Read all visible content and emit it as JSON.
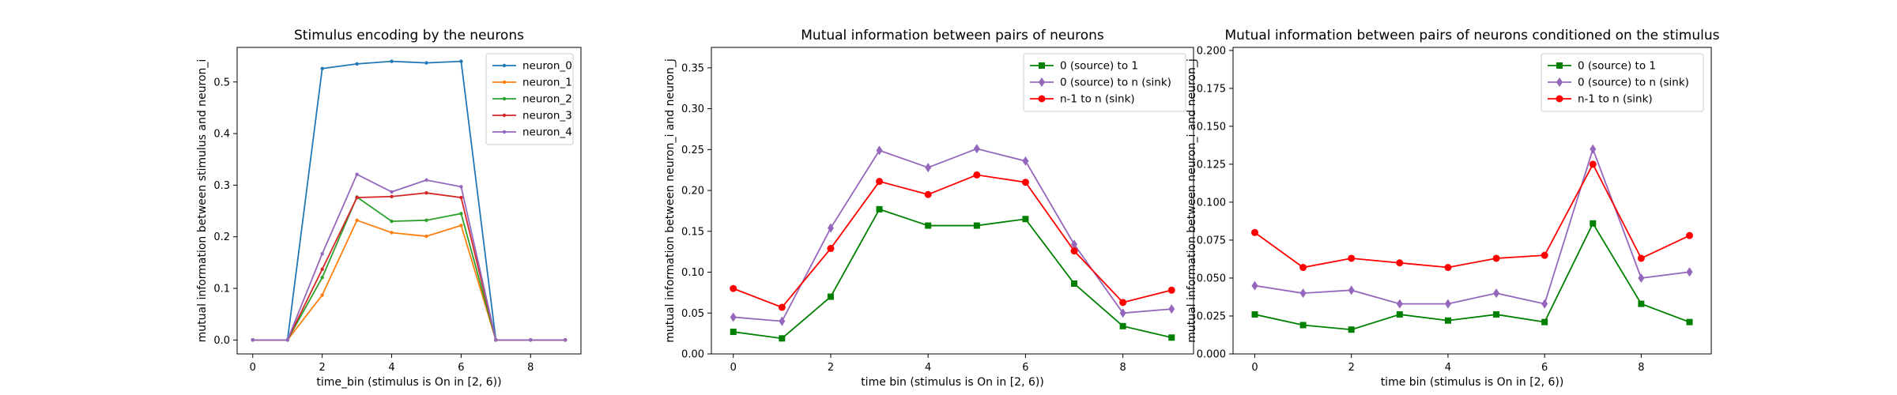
{
  "chart_data": [
    {
      "type": "line",
      "title": "Stimulus encoding by the neurons",
      "xlabel": "time_bin (stimulus is On in [2, 6))",
      "ylabel": "mutual information between stimulus and neuron_i",
      "xlim": [
        -0.45,
        9.45
      ],
      "ylim": [
        -0.027,
        0.567
      ],
      "xticks": [
        0,
        2,
        4,
        6,
        8
      ],
      "yticks": [
        0.0,
        0.1,
        0.2,
        0.3,
        0.4,
        0.5
      ],
      "ytick_format": 1,
      "grid": false,
      "legend": "top-right",
      "x": [
        0,
        1,
        2,
        3,
        4,
        5,
        6,
        7,
        8,
        9
      ],
      "series": [
        {
          "name": "neuron_0",
          "color": "#1f77b4",
          "marker": "point",
          "values": [
            0.0,
            0.0,
            0.526,
            0.535,
            0.54,
            0.537,
            0.54,
            0.0,
            0.0,
            0.0
          ]
        },
        {
          "name": "neuron_1",
          "color": "#ff7f0e",
          "marker": "point",
          "values": [
            0.0,
            0.0,
            0.087,
            0.232,
            0.208,
            0.201,
            0.222,
            0.0,
            0.0,
            0.0
          ]
        },
        {
          "name": "neuron_2",
          "color": "#2ca02c",
          "marker": "point",
          "values": [
            0.0,
            0.0,
            0.121,
            0.277,
            0.23,
            0.232,
            0.245,
            0.0,
            0.0,
            0.0
          ]
        },
        {
          "name": "neuron_3",
          "color": "#d62728",
          "marker": "point",
          "values": [
            0.0,
            0.0,
            0.137,
            0.276,
            0.278,
            0.285,
            0.276,
            0.0,
            0.0,
            0.0
          ]
        },
        {
          "name": "neuron_4",
          "color": "#9467bd",
          "marker": "point",
          "values": [
            0.0,
            0.0,
            0.167,
            0.321,
            0.287,
            0.31,
            0.297,
            0.0,
            0.0,
            0.0
          ]
        }
      ]
    },
    {
      "type": "line",
      "title": "Mutual information between pairs of neurons",
      "xlabel": "time bin (stimulus is On in [2, 6))",
      "ylabel": "mutual information between neuron_i and neuron_j",
      "xlim": [
        -0.45,
        9.45
      ],
      "ylim": [
        0.0,
        0.375
      ],
      "xticks": [
        0,
        2,
        4,
        6,
        8
      ],
      "yticks": [
        0.0,
        0.05,
        0.1,
        0.15,
        0.2,
        0.25,
        0.3,
        0.35
      ],
      "ytick_format": 2,
      "grid": false,
      "legend": "top-right",
      "x": [
        0,
        1,
        2,
        3,
        4,
        5,
        6,
        7,
        8,
        9
      ],
      "series": [
        {
          "name": "0 (source) to 1",
          "color": "#008000",
          "marker": "square",
          "values": [
            0.027,
            0.019,
            0.07,
            0.177,
            0.157,
            0.157,
            0.165,
            0.086,
            0.034,
            0.02
          ]
        },
        {
          "name": "0 (source) to n (sink)",
          "color": "#9467bd",
          "marker": "diamond",
          "values": [
            0.045,
            0.04,
            0.154,
            0.249,
            0.228,
            0.251,
            0.236,
            0.134,
            0.05,
            0.055
          ]
        },
        {
          "name": "n-1 to n (sink)",
          "color": "#ff0000",
          "marker": "circle",
          "values": [
            0.08,
            0.057,
            0.129,
            0.211,
            0.195,
            0.219,
            0.21,
            0.126,
            0.063,
            0.078
          ]
        }
      ]
    },
    {
      "type": "line",
      "title": "Mutual information between pairs of neurons conditioned on the stimulus",
      "xlabel": "time bin (stimulus is On in [2, 6))",
      "ylabel": "mutual information between neuron_i and neuron_j",
      "xlim": [
        -0.45,
        9.45
      ],
      "ylim": [
        0.0,
        0.202
      ],
      "xticks": [
        0,
        2,
        4,
        6,
        8
      ],
      "yticks": [
        0.0,
        0.025,
        0.05,
        0.075,
        0.1,
        0.125,
        0.15,
        0.175,
        0.2
      ],
      "ytick_format": 3,
      "grid": false,
      "legend": "top-right",
      "x": [
        0,
        1,
        2,
        3,
        4,
        5,
        6,
        7,
        8,
        9
      ],
      "series": [
        {
          "name": "0 (source) to 1",
          "color": "#008000",
          "marker": "square",
          "values": [
            0.026,
            0.019,
            0.016,
            0.026,
            0.022,
            0.026,
            0.021,
            0.086,
            0.033,
            0.021
          ]
        },
        {
          "name": "0 (source) to n (sink)",
          "color": "#9467bd",
          "marker": "diamond",
          "values": [
            0.045,
            0.04,
            0.042,
            0.033,
            0.033,
            0.04,
            0.033,
            0.135,
            0.05,
            0.054
          ]
        },
        {
          "name": "n-1 to n (sink)",
          "color": "#ff0000",
          "marker": "circle",
          "values": [
            0.08,
            0.057,
            0.063,
            0.06,
            0.057,
            0.063,
            0.065,
            0.125,
            0.063,
            0.078
          ]
        }
      ]
    }
  ]
}
